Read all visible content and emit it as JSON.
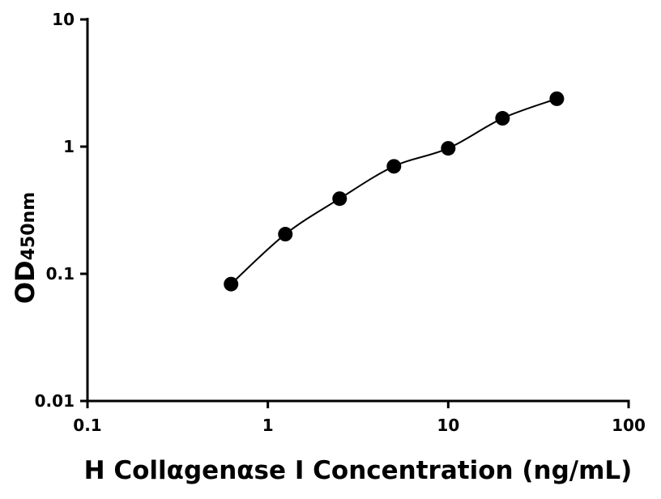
{
  "chart_data": {
    "type": "scatter",
    "title": "",
    "xlabel": "H Collαgenαse I Concentration (ng/mL)",
    "ylabel": "OD",
    "ylabel_subscript": "450nm",
    "x_scale": "log",
    "y_scale": "log",
    "xlim": [
      0.1,
      100
    ],
    "ylim": [
      0.01,
      10
    ],
    "x_ticks": [
      {
        "value": 0.1,
        "label": "0.1"
      },
      {
        "value": 1,
        "label": "1"
      },
      {
        "value": 10,
        "label": "10"
      },
      {
        "value": 100,
        "label": "100"
      }
    ],
    "y_ticks": [
      {
        "value": 0.01,
        "label": "0.01"
      },
      {
        "value": 0.1,
        "label": "0.1"
      },
      {
        "value": 1,
        "label": "1"
      },
      {
        "value": 10,
        "label": "10"
      }
    ],
    "grid": false,
    "fit_curve": true,
    "color": "#000000",
    "series": [
      {
        "x": [
          0.625,
          1.25,
          2.5,
          5,
          10,
          20,
          40
        ],
        "y": [
          0.083,
          0.205,
          0.39,
          0.7,
          0.97,
          1.67,
          2.38
        ]
      }
    ]
  }
}
